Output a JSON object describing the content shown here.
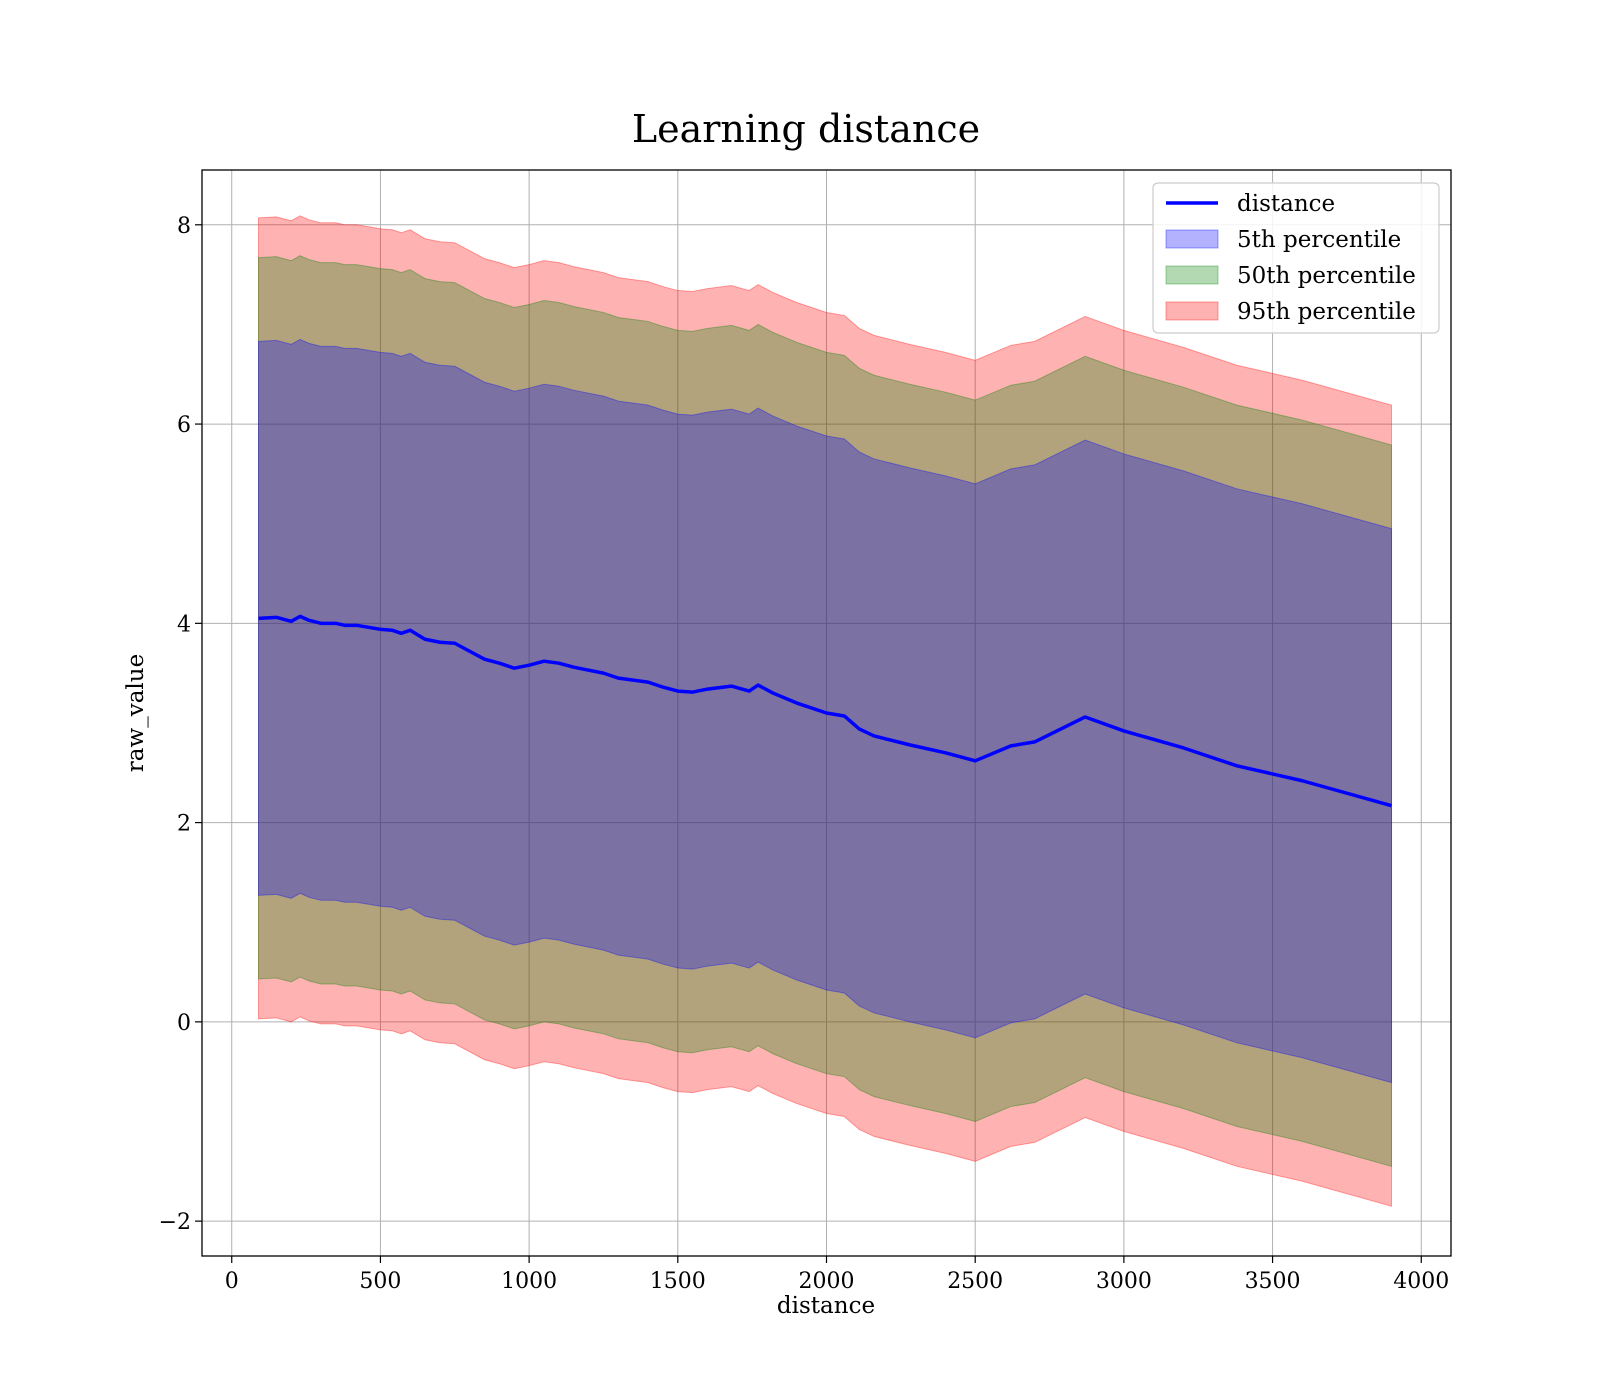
{
  "chart_data": {
    "type": "line",
    "title": "Learning distance",
    "xlabel": "distance",
    "ylabel": "raw_value",
    "xlim": [
      -100,
      4100
    ],
    "ylim": [
      -2.35,
      8.55
    ],
    "xticks": [
      0,
      500,
      1000,
      1500,
      2000,
      2500,
      3000,
      3500,
      4000
    ],
    "xtick_labels": [
      "0",
      "500",
      "1000",
      "1500",
      "2000",
      "2500",
      "3000",
      "3500",
      "4000"
    ],
    "yticks": [
      -2,
      0,
      2,
      4,
      6,
      8
    ],
    "ytick_labels": [
      "−2",
      "0",
      "2",
      "4",
      "6",
      "8"
    ],
    "grid": true,
    "legend_position": "top-right",
    "x": [
      90,
      150,
      200,
      230,
      260,
      300,
      350,
      380,
      420,
      460,
      500,
      540,
      570,
      600,
      650,
      700,
      750,
      800,
      850,
      900,
      950,
      1000,
      1050,
      1100,
      1150,
      1200,
      1250,
      1300,
      1350,
      1400,
      1450,
      1500,
      1550,
      1600,
      1680,
      1740,
      1770,
      1820,
      1900,
      2000,
      2060,
      2110,
      2160,
      2280,
      2400,
      2500,
      2620,
      2700,
      2870,
      3000,
      3200,
      3380,
      3600,
      3900
    ],
    "series": [
      {
        "name": "distance",
        "kind": "line",
        "color": "#0000ff",
        "values": [
          4.05,
          4.06,
          4.02,
          4.07,
          4.03,
          4.0,
          4.0,
          3.98,
          3.98,
          3.96,
          3.94,
          3.93,
          3.9,
          3.93,
          3.84,
          3.81,
          3.8,
          3.72,
          3.64,
          3.6,
          3.55,
          3.58,
          3.62,
          3.6,
          3.56,
          3.53,
          3.5,
          3.45,
          3.43,
          3.41,
          3.36,
          3.32,
          3.31,
          3.34,
          3.37,
          3.32,
          3.38,
          3.3,
          3.2,
          3.1,
          3.07,
          2.94,
          2.87,
          2.78,
          2.7,
          2.62,
          2.77,
          2.81,
          3.06,
          2.92,
          2.75,
          2.57,
          2.42,
          2.17
        ]
      },
      {
        "name": "5th percentile",
        "kind": "band",
        "color": "#0000ff",
        "offsets": [
          -2.78,
          2.78
        ],
        "opacity": 0.3
      },
      {
        "name": "50th percentile",
        "kind": "band",
        "color": "#008000",
        "offsets": [
          -3.62,
          3.62
        ],
        "opacity": 0.3
      },
      {
        "name": "95th percentile",
        "kind": "band",
        "color": "#ff0000",
        "offsets": [
          -4.02,
          4.02
        ],
        "opacity": 0.3
      }
    ]
  }
}
